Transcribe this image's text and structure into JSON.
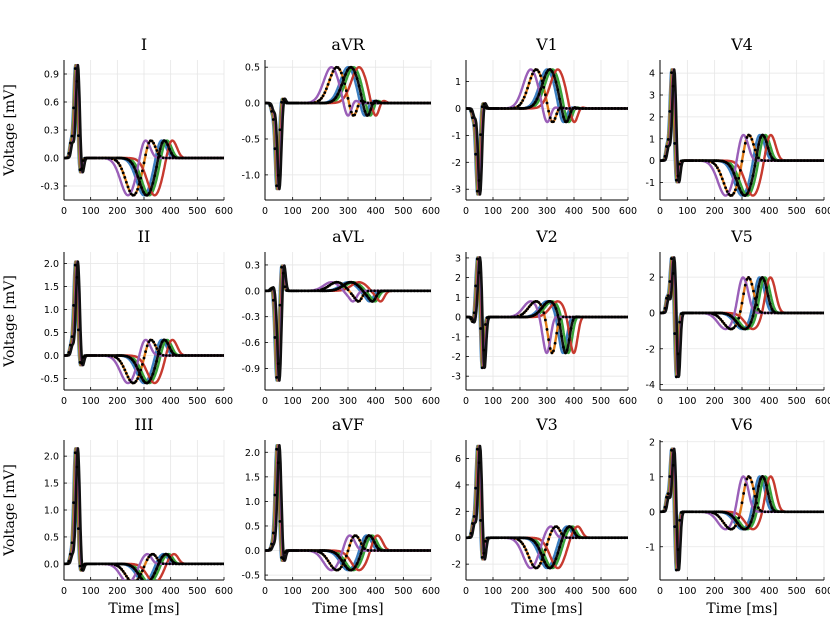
{
  "chart_data": {
    "type": "line",
    "xlabel": "Time [ms]",
    "ylabel": "Voltage [mV]",
    "xlim": [
      0,
      600
    ],
    "xticks": [
      0,
      100,
      200,
      300,
      400,
      500,
      600
    ],
    "series_colors": [
      "#3d7fc1",
      "#e07b17",
      "#3aa23a",
      "#c73a2f",
      "#9a5fb8",
      "#111111"
    ],
    "t_wave_shifts_ms": [
      0,
      -40,
      20,
      40,
      -60,
      10
    ],
    "panels": [
      {
        "title": "I",
        "ylim": [
          -0.45,
          1.05
        ],
        "yticks": [
          -0.3,
          0.0,
          0.3,
          0.6,
          0.9
        ],
        "ytick_labels": [
          "-0.3",
          "0.0",
          "0.3",
          "0.6",
          "0.9"
        ],
        "peaks": [
          0.15,
          1.0,
          -0.2,
          0.05,
          -0.4,
          0.2
        ]
      },
      {
        "title": "aVR",
        "ylim": [
          -1.35,
          0.6
        ],
        "yticks": [
          -1.0,
          -0.5,
          0.0,
          0.5
        ],
        "ytick_labels": [
          "-1.0",
          "-0.5",
          "0.0",
          "0.5"
        ],
        "peaks": [
          -0.1,
          -1.2,
          0.1,
          0.1,
          0.5,
          -0.25
        ]
      },
      {
        "title": "V1",
        "ylim": [
          -3.4,
          1.8
        ],
        "yticks": [
          -3,
          -2,
          -1,
          0,
          1
        ],
        "ytick_labels": [
          "-3",
          "-2",
          "-1",
          "0",
          "1"
        ],
        "peaks": [
          -0.3,
          -3.2,
          0.3,
          0.2,
          1.45,
          -0.7
        ]
      },
      {
        "title": "V4",
        "ylim": [
          -1.8,
          4.6
        ],
        "yticks": [
          -1,
          0,
          1,
          2,
          3,
          4
        ],
        "ytick_labels": [
          "-1",
          "0",
          "1",
          "2",
          "3",
          "4"
        ],
        "peaks": [
          0.6,
          4.2,
          -1.2,
          0.3,
          -1.6,
          1.2
        ]
      },
      {
        "title": "II",
        "ylim": [
          -0.75,
          2.25
        ],
        "yticks": [
          -0.5,
          0.0,
          0.5,
          1.0,
          1.5,
          2.0
        ],
        "ytick_labels": [
          "-0.5",
          "0.0",
          "0.5",
          "1.0",
          "1.5",
          "2.0"
        ],
        "peaks": [
          0.2,
          2.05,
          -0.3,
          0.1,
          -0.6,
          0.35
        ]
      },
      {
        "title": "aVL",
        "ylim": [
          -1.15,
          0.45
        ],
        "yticks": [
          -0.9,
          -0.6,
          -0.3,
          0.0,
          0.3
        ],
        "ytick_labels": [
          "-0.9",
          "-0.6",
          "-0.3",
          "0.0",
          "0.3"
        ],
        "peaks": [
          0.05,
          -1.05,
          0.35,
          -0.1,
          0.1,
          -0.05
        ]
      },
      {
        "title": "V2",
        "ylim": [
          -3.7,
          3.3
        ],
        "yticks": [
          -3,
          -2,
          -1,
          0,
          1,
          2,
          3
        ],
        "ytick_labels": [
          "-3",
          "-2",
          "-1",
          "0",
          "1",
          "2",
          "3"
        ],
        "peaks": [
          -0.3,
          3.1,
          -2.8,
          0.4,
          0.8,
          -2.0
        ]
      },
      {
        "title": "V5",
        "ylim": [
          -4.3,
          3.4
        ],
        "yticks": [
          -4,
          -2,
          0,
          2
        ],
        "ytick_labels": [
          "-4",
          "-2",
          "0",
          "2"
        ],
        "peaks": [
          0.8,
          3.2,
          -3.8,
          0.5,
          -0.9,
          1.9
        ]
      },
      {
        "title": "III",
        "ylim": [
          -0.3,
          2.3
        ],
        "yticks": [
          0.0,
          0.5,
          1.0,
          1.5,
          2.0
        ],
        "ytick_labels": [
          "0.0",
          "0.5",
          "1.0",
          "1.5",
          "2.0"
        ],
        "peaks": [
          0.15,
          2.15,
          -0.2,
          0.1,
          -0.35,
          0.15
        ]
      },
      {
        "title": "aVF",
        "ylim": [
          -0.6,
          2.25
        ],
        "yticks": [
          -0.5,
          0.0,
          0.5,
          1.0,
          1.5,
          2.0
        ],
        "ytick_labels": [
          "-0.5",
          "0.0",
          "0.5",
          "1.0",
          "1.5",
          "2.0"
        ],
        "peaks": [
          0.1,
          2.15,
          -0.3,
          0.1,
          -0.4,
          0.3
        ]
      },
      {
        "title": "V3",
        "ylim": [
          -3.2,
          7.4
        ],
        "yticks": [
          -2,
          0,
          2,
          4,
          6
        ],
        "ytick_labels": [
          "-2",
          "0",
          "2",
          "4",
          "6"
        ],
        "peaks": [
          1.0,
          7.0,
          -2.0,
          0.5,
          -2.3,
          0.7
        ]
      },
      {
        "title": "V6",
        "ylim": [
          -1.95,
          2.05
        ],
        "yticks": [
          -1,
          0,
          1,
          2
        ],
        "ytick_labels": [
          "-1",
          "0",
          "1",
          "2"
        ],
        "peaks": [
          0.4,
          1.85,
          -1.8,
          0.3,
          -0.5,
          0.95
        ]
      }
    ]
  }
}
